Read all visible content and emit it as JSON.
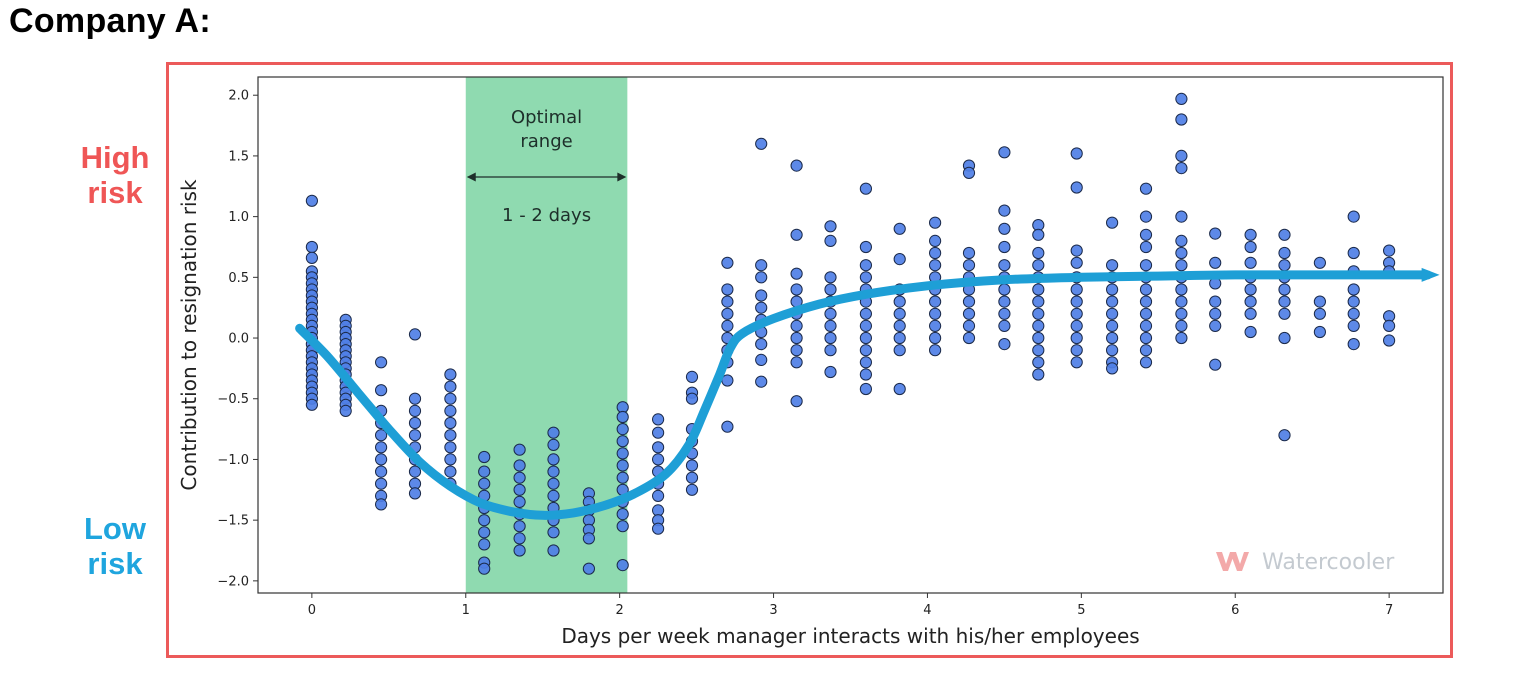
{
  "page": {
    "heading": "Company A:",
    "high_risk_label": [
      "High",
      "risk"
    ],
    "low_risk_label": [
      "Low",
      "risk"
    ],
    "watermark": "Watercooler"
  },
  "colors": {
    "frame": "#ec5a5a",
    "high_risk": "#ef5656",
    "low_risk": "#1fa5de",
    "points": "#4f7fe6",
    "point_edge": "#1b2a4a",
    "trend": "#1e9fd6",
    "optimal_band": "#8fdab0"
  },
  "chart_data": {
    "type": "scatter",
    "title": "",
    "xlabel": "Days per week manager interacts with his/her employees",
    "ylabel": "Contribution to resignation risk",
    "xlim": [
      -0.35,
      7.35
    ],
    "ylim": [
      -2.1,
      2.15
    ],
    "xticks": [
      0,
      1,
      2,
      3,
      4,
      5,
      6,
      7
    ],
    "yticks": [
      -2.0,
      -1.5,
      -1.0,
      -0.5,
      0.0,
      0.5,
      1.0,
      1.5,
      2.0
    ],
    "ytick_labels": [
      "−2.0",
      "−1.5",
      "−1.0",
      "−0.5",
      "0.0",
      "0.5",
      "1.0",
      "1.5",
      "2.0"
    ],
    "grid": false,
    "optimal_range": {
      "x": [
        1.0,
        2.05
      ],
      "label_lines": [
        "Optimal",
        "range"
      ],
      "days_label": "1 - 2 days"
    },
    "columns": [
      {
        "x": 0.0,
        "y": [
          1.13,
          0.75,
          0.66,
          0.55,
          0.5,
          0.45,
          0.4,
          0.35,
          0.3,
          0.25,
          0.2,
          0.15,
          0.1,
          0.05,
          0.0,
          -0.05,
          -0.1,
          -0.15,
          -0.2,
          -0.25,
          -0.3,
          -0.35,
          -0.4,
          -0.45,
          -0.5,
          -0.55
        ]
      },
      {
        "x": 0.22,
        "y": [
          0.15,
          0.1,
          0.05,
          0.0,
          -0.05,
          -0.1,
          -0.15,
          -0.2,
          -0.25,
          -0.3,
          -0.35,
          -0.4,
          -0.45,
          -0.5,
          -0.55,
          -0.6
        ]
      },
      {
        "x": 0.45,
        "y": [
          -0.2,
          -0.43,
          -0.6,
          -0.7,
          -0.8,
          -0.9,
          -1.0,
          -1.1,
          -1.2,
          -1.3,
          -1.37
        ]
      },
      {
        "x": 0.67,
        "y": [
          0.03,
          -0.5,
          -0.6,
          -0.7,
          -0.8,
          -0.9,
          -1.0,
          -1.1,
          -1.2,
          -1.28
        ]
      },
      {
        "x": 0.9,
        "y": [
          -0.3,
          -0.4,
          -0.5,
          -0.6,
          -0.7,
          -0.8,
          -0.9,
          -1.0,
          -1.1,
          -1.2
        ]
      },
      {
        "x": 1.12,
        "y": [
          -0.98,
          -1.1,
          -1.2,
          -1.3,
          -1.4,
          -1.5,
          -1.6,
          -1.7,
          -1.85,
          -1.9
        ]
      },
      {
        "x": 1.35,
        "y": [
          -0.92,
          -1.05,
          -1.15,
          -1.25,
          -1.35,
          -1.45,
          -1.55,
          -1.65,
          -1.75
        ]
      },
      {
        "x": 1.57,
        "y": [
          -0.78,
          -0.88,
          -1.0,
          -1.1,
          -1.2,
          -1.3,
          -1.4,
          -1.5,
          -1.6,
          -1.75
        ]
      },
      {
        "x": 1.8,
        "y": [
          -1.28,
          -1.35,
          -1.42,
          -1.5,
          -1.58,
          -1.65,
          -1.9
        ]
      },
      {
        "x": 2.02,
        "y": [
          -0.57,
          -0.65,
          -0.75,
          -0.85,
          -0.95,
          -1.05,
          -1.15,
          -1.25,
          -1.35,
          -1.45,
          -1.55,
          -1.87
        ]
      },
      {
        "x": 2.25,
        "y": [
          -0.67,
          -0.78,
          -0.9,
          -1.0,
          -1.1,
          -1.2,
          -1.3,
          -1.42,
          -1.5,
          -1.57
        ]
      },
      {
        "x": 2.47,
        "y": [
          -0.32,
          -0.45,
          -0.5,
          -0.75,
          -0.85,
          -0.95,
          -1.05,
          -1.15,
          -1.25
        ]
      },
      {
        "x": 2.7,
        "y": [
          0.62,
          0.4,
          0.3,
          0.2,
          0.1,
          0.0,
          -0.1,
          -0.2,
          -0.35,
          -0.73
        ]
      },
      {
        "x": 2.92,
        "y": [
          1.6,
          0.6,
          0.5,
          0.35,
          0.25,
          0.15,
          0.05,
          -0.05,
          -0.18,
          -0.36
        ]
      },
      {
        "x": 3.15,
        "y": [
          1.42,
          0.85,
          0.53,
          0.4,
          0.3,
          0.2,
          0.1,
          0.0,
          -0.1,
          -0.2,
          -0.52
        ]
      },
      {
        "x": 3.37,
        "y": [
          0.92,
          0.8,
          0.5,
          0.4,
          0.3,
          0.2,
          0.1,
          0.0,
          -0.1,
          -0.28
        ]
      },
      {
        "x": 3.6,
        "y": [
          1.23,
          0.75,
          0.6,
          0.5,
          0.4,
          0.3,
          0.2,
          0.1,
          0.0,
          -0.1,
          -0.2,
          -0.3,
          -0.42
        ]
      },
      {
        "x": 3.82,
        "y": [
          0.9,
          0.65,
          0.4,
          0.3,
          0.2,
          0.1,
          0.0,
          -0.1,
          -0.42
        ]
      },
      {
        "x": 4.05,
        "y": [
          0.95,
          0.8,
          0.7,
          0.6,
          0.5,
          0.4,
          0.3,
          0.2,
          0.1,
          0.0,
          -0.1
        ]
      },
      {
        "x": 4.27,
        "y": [
          1.42,
          1.36,
          0.7,
          0.6,
          0.5,
          0.4,
          0.3,
          0.2,
          0.1,
          0.0
        ]
      },
      {
        "x": 4.5,
        "y": [
          1.53,
          1.05,
          0.9,
          0.75,
          0.6,
          0.5,
          0.4,
          0.3,
          0.2,
          0.1,
          -0.05
        ]
      },
      {
        "x": 4.72,
        "y": [
          0.93,
          0.85,
          0.7,
          0.6,
          0.5,
          0.4,
          0.3,
          0.2,
          0.1,
          0.0,
          -0.1,
          -0.2,
          -0.3
        ]
      },
      {
        "x": 4.97,
        "y": [
          1.52,
          1.24,
          0.72,
          0.62,
          0.5,
          0.4,
          0.3,
          0.2,
          0.1,
          0.0,
          -0.1,
          -0.2
        ]
      },
      {
        "x": 5.2,
        "y": [
          0.95,
          0.6,
          0.5,
          0.4,
          0.3,
          0.2,
          0.1,
          0.0,
          -0.1,
          -0.2,
          -0.25
        ]
      },
      {
        "x": 5.42,
        "y": [
          1.23,
          1.0,
          0.85,
          0.75,
          0.6,
          0.5,
          0.4,
          0.3,
          0.2,
          0.1,
          0.0,
          -0.1,
          -0.2
        ]
      },
      {
        "x": 5.65,
        "y": [
          1.97,
          1.8,
          1.5,
          1.4,
          1.0,
          0.8,
          0.7,
          0.6,
          0.5,
          0.4,
          0.3,
          0.2,
          0.1,
          0.0
        ]
      },
      {
        "x": 5.87,
        "y": [
          0.86,
          0.62,
          0.45,
          0.3,
          0.2,
          0.1,
          -0.22
        ]
      },
      {
        "x": 6.1,
        "y": [
          0.85,
          0.75,
          0.62,
          0.5,
          0.4,
          0.3,
          0.2,
          0.05
        ]
      },
      {
        "x": 6.32,
        "y": [
          0.85,
          0.7,
          0.6,
          0.5,
          0.4,
          0.3,
          0.2,
          0.0,
          -0.8
        ]
      },
      {
        "x": 6.55,
        "y": [
          0.62,
          0.3,
          0.2,
          0.05
        ]
      },
      {
        "x": 6.77,
        "y": [
          1.0,
          0.7,
          0.55,
          0.4,
          0.3,
          0.2,
          0.1,
          -0.05
        ]
      },
      {
        "x": 7.0,
        "y": [
          0.72,
          0.62,
          0.55,
          0.18,
          0.1,
          -0.02
        ]
      }
    ],
    "trend_line": {
      "x": [
        -0.08,
        0.1,
        0.3,
        0.5,
        0.7,
        0.9,
        1.1,
        1.3,
        1.5,
        1.7,
        1.9,
        2.1,
        2.3,
        2.45,
        2.55,
        2.65,
        2.72,
        2.8,
        3.0,
        3.3,
        3.6,
        4.0,
        4.5,
        5.0,
        5.5,
        6.0,
        6.5,
        7.0,
        7.25
      ],
      "y": [
        0.08,
        -0.15,
        -0.45,
        -0.75,
        -1.02,
        -1.22,
        -1.36,
        -1.43,
        -1.46,
        -1.44,
        -1.38,
        -1.28,
        -1.12,
        -0.88,
        -0.6,
        -0.3,
        -0.08,
        0.04,
        0.16,
        0.28,
        0.36,
        0.43,
        0.48,
        0.5,
        0.51,
        0.52,
        0.52,
        0.52,
        0.52
      ]
    }
  }
}
